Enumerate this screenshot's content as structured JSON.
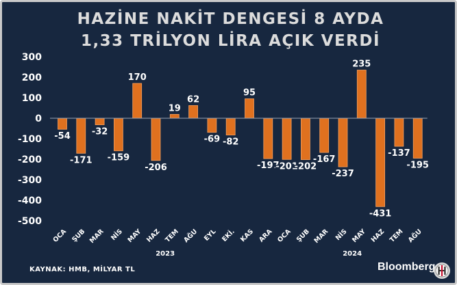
{
  "title_line1": "HAZİNE NAKİT DENGESİ 8 AYDA",
  "title_line2": "1,33 TRİLYON LİRA AÇIK VERDİ",
  "source": "KAYNAK: HMB, MİLYAR TL",
  "brand": "Bloomberg",
  "brand_logo_letters": "HT",
  "colors": {
    "background": "#17273f",
    "bar": "#e0711f",
    "text": "#ffffff",
    "title": "#dcdcdc",
    "frame": "#c9c9c9"
  },
  "chart_data": {
    "type": "bar",
    "categories": [
      "OCA",
      "ŞUB",
      "MAR",
      "NİS",
      "MAY",
      "HAZ",
      "TEM",
      "AĞU",
      "EYL",
      "EKİ.",
      "KAS",
      "ARA",
      "OCA",
      "ŞUB",
      "MAR",
      "NİS",
      "MAY",
      "HAZ",
      "TEM",
      "AĞU"
    ],
    "values": [
      -54,
      -171,
      -32,
      -159,
      170,
      -206,
      19,
      62,
      -69,
      -82,
      95,
      -197,
      -201,
      -202,
      -167,
      -237,
      235,
      -431,
      -137,
      -195
    ],
    "year_groups": [
      {
        "label": "2023",
        "from": 0,
        "to": 11
      },
      {
        "label": "2024",
        "from": 12,
        "to": 19
      }
    ],
    "ylim": [
      -500,
      300
    ],
    "yticks": [
      300,
      200,
      100,
      0,
      -100,
      -200,
      -300,
      -400,
      -500
    ],
    "title": "",
    "xlabel": "",
    "ylabel": "",
    "grid": false,
    "legend": "none"
  }
}
